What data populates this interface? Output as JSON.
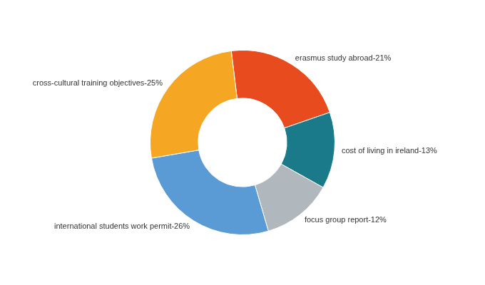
{
  "chart_data": {
    "type": "doughnut",
    "categories": [
      "erasmus study abroad-21%",
      "cost of living in ireland-13%",
      "focus group report-12%",
      "international students work permit-26%",
      "cross-cultural training objectives-25%"
    ],
    "values": [
      21,
      13,
      12,
      26,
      25
    ],
    "colors": [
      "#e84c1e",
      "#1a7a8a",
      "#b0b8be",
      "#5b9bd5",
      "#f5a623"
    ]
  }
}
